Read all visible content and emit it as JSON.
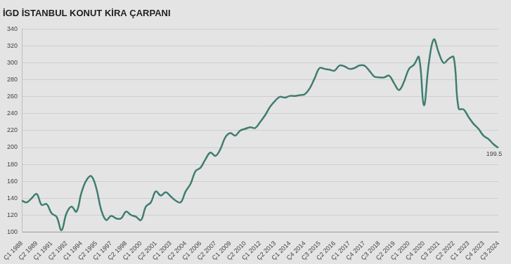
{
  "chart_data": {
    "type": "line",
    "title": "İGD İSTANBUL KONUT KİRA ÇARPANI",
    "categories": [
      "Ç1 1988",
      null,
      null,
      "Ç2 1989",
      null,
      null,
      "Ç1 1991",
      null,
      null,
      "Ç2 1992",
      null,
      null,
      "Ç1 1994",
      null,
      null,
      "Ç2 1995",
      null,
      null,
      "Ç1 1997",
      null,
      null,
      "Ç2 1998",
      null,
      null,
      "Ç1 2000",
      null,
      null,
      "Ç2 2001",
      null,
      null,
      "Ç1 2003",
      null,
      null,
      "Ç2 2004",
      null,
      null,
      "Ç1 2006",
      null,
      null,
      "Ç2 2007",
      null,
      null,
      "Ç1 2009",
      null,
      null,
      "Ç2 2010",
      null,
      null,
      "Ç1 2012",
      null,
      null,
      "Ç2 2013",
      null,
      null,
      "Ç1 2014",
      null,
      null,
      "Ç4 2014",
      null,
      null,
      "Ç3 2015",
      null,
      null,
      "Ç2 2016",
      null,
      null,
      "Ç1 2017",
      null,
      null,
      "Ç4 2017",
      null,
      null,
      "Ç3 2018",
      null,
      null,
      "Ç2 2019",
      null,
      null,
      "Ç1 2020",
      null,
      null,
      "Ç4 2020",
      null,
      null,
      "Ç3 2021",
      null,
      null,
      "Ç2 2022",
      null,
      null,
      "Ç1 2023",
      null,
      null,
      "Ç4 2023",
      null,
      null,
      "Ç3 2024"
    ],
    "values": [
      137,
      135,
      140,
      145,
      132,
      133,
      122,
      118,
      102,
      122,
      130,
      124,
      146,
      161,
      166,
      152,
      126,
      114,
      119,
      116,
      116,
      124,
      120,
      118,
      114,
      130,
      135,
      148,
      143,
      147,
      142,
      137,
      135,
      148,
      157,
      172,
      176,
      186,
      194,
      190,
      198,
      212,
      217,
      214,
      220,
      222,
      224,
      223,
      230,
      238,
      248,
      255,
      260,
      259,
      261,
      261,
      262,
      263,
      270,
      282,
      294,
      293,
      292,
      291,
      297,
      296,
      293,
      294,
      297,
      297,
      291,
      284,
      283,
      283,
      285,
      276,
      268,
      278,
      293,
      298,
      307,
      250,
      300,
      328,
      312,
      300,
      305,
      307,
      246,
      245,
      236,
      228,
      222,
      214,
      210,
      204,
      199.5
    ],
    "value_labels": [
      null,
      null,
      null,
      null,
      null,
      null,
      null,
      null,
      null,
      null,
      null,
      null,
      null,
      null,
      null,
      null,
      null,
      null,
      null,
      null,
      null,
      null,
      null,
      null,
      null,
      null,
      null,
      null,
      null,
      null,
      null,
      null,
      null,
      null,
      null,
      null,
      null,
      null,
      null,
      null,
      null,
      null,
      null,
      null,
      null,
      null,
      null,
      null,
      null,
      null,
      null,
      null,
      null,
      null,
      null,
      null,
      null,
      null,
      null,
      null,
      null,
      null,
      null,
      null,
      null,
      null,
      null,
      null,
      null,
      null,
      null,
      null,
      null,
      null,
      null,
      null,
      null,
      null,
      null,
      null,
      null,
      null,
      null,
      null,
      null,
      null,
      null,
      null,
      null,
      null,
      null,
      null,
      null,
      null,
      null,
      null,
      "199.5"
    ],
    "data_labels": true,
    "color": "#3f7d70",
    "ylim": [
      100,
      340
    ],
    "yticks": [
      100,
      120,
      140,
      160,
      180,
      200,
      220,
      240,
      260,
      280,
      300,
      320,
      340
    ],
    "grid": true
  }
}
